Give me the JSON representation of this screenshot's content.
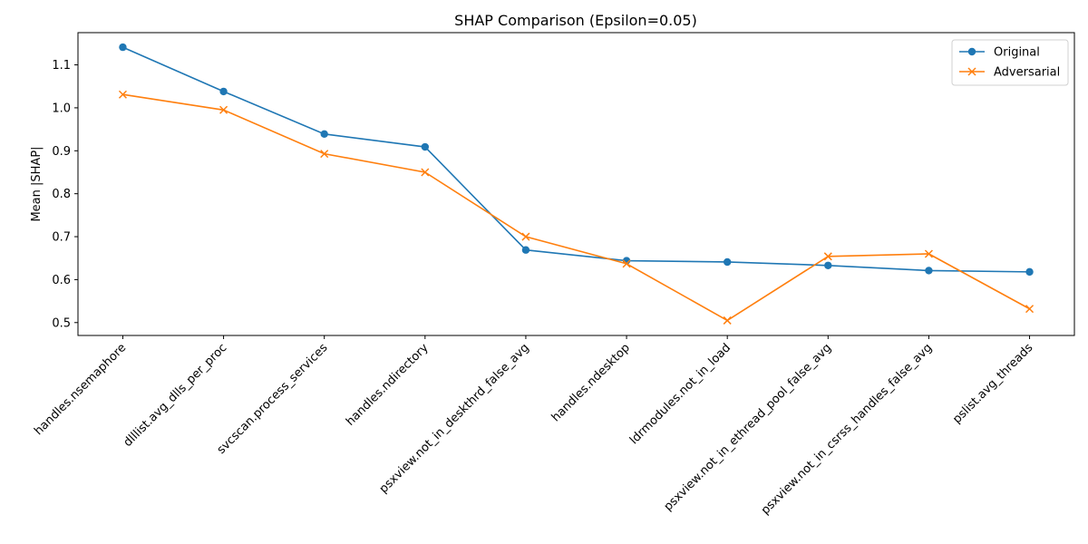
{
  "chart_data": {
    "type": "line",
    "title": "SHAP Comparison (Epsilon=0.05)",
    "xlabel": "",
    "ylabel": "Mean |SHAP|",
    "ylim": [
      0.47,
      1.175
    ],
    "yticks": [
      0.5,
      0.6,
      0.7,
      0.8,
      0.9,
      1.0,
      1.1
    ],
    "ytick_labels": [
      "0.5",
      "0.6",
      "0.7",
      "0.8",
      "0.9",
      "1.0",
      "1.1"
    ],
    "grid": false,
    "legend": "top-right",
    "categories": [
      "handles.nsemaphore",
      "dlllist.avg_dlls_per_proc",
      "svcscan.process_services",
      "handles.ndirectory",
      "psxview.not_in_deskthrd_false_avg",
      "handles.ndesktop",
      "ldrmodules.not_in_load",
      "psxview.not_in_ethread_pool_false_avg",
      "psxview.not_in_csrss_handles_false_avg",
      "pslist.avg_threads"
    ],
    "series": [
      {
        "name": "Original",
        "color": "#1f77b4",
        "marker": "circle",
        "values": [
          1.141,
          1.038,
          0.939,
          0.909,
          0.669,
          0.644,
          0.641,
          0.633,
          0.621,
          0.618
        ]
      },
      {
        "name": "Adversarial",
        "color": "#ff7f0e",
        "marker": "x",
        "values": [
          1.031,
          0.995,
          0.893,
          0.85,
          0.7,
          0.637,
          0.505,
          0.654,
          0.66,
          0.532
        ]
      }
    ]
  }
}
